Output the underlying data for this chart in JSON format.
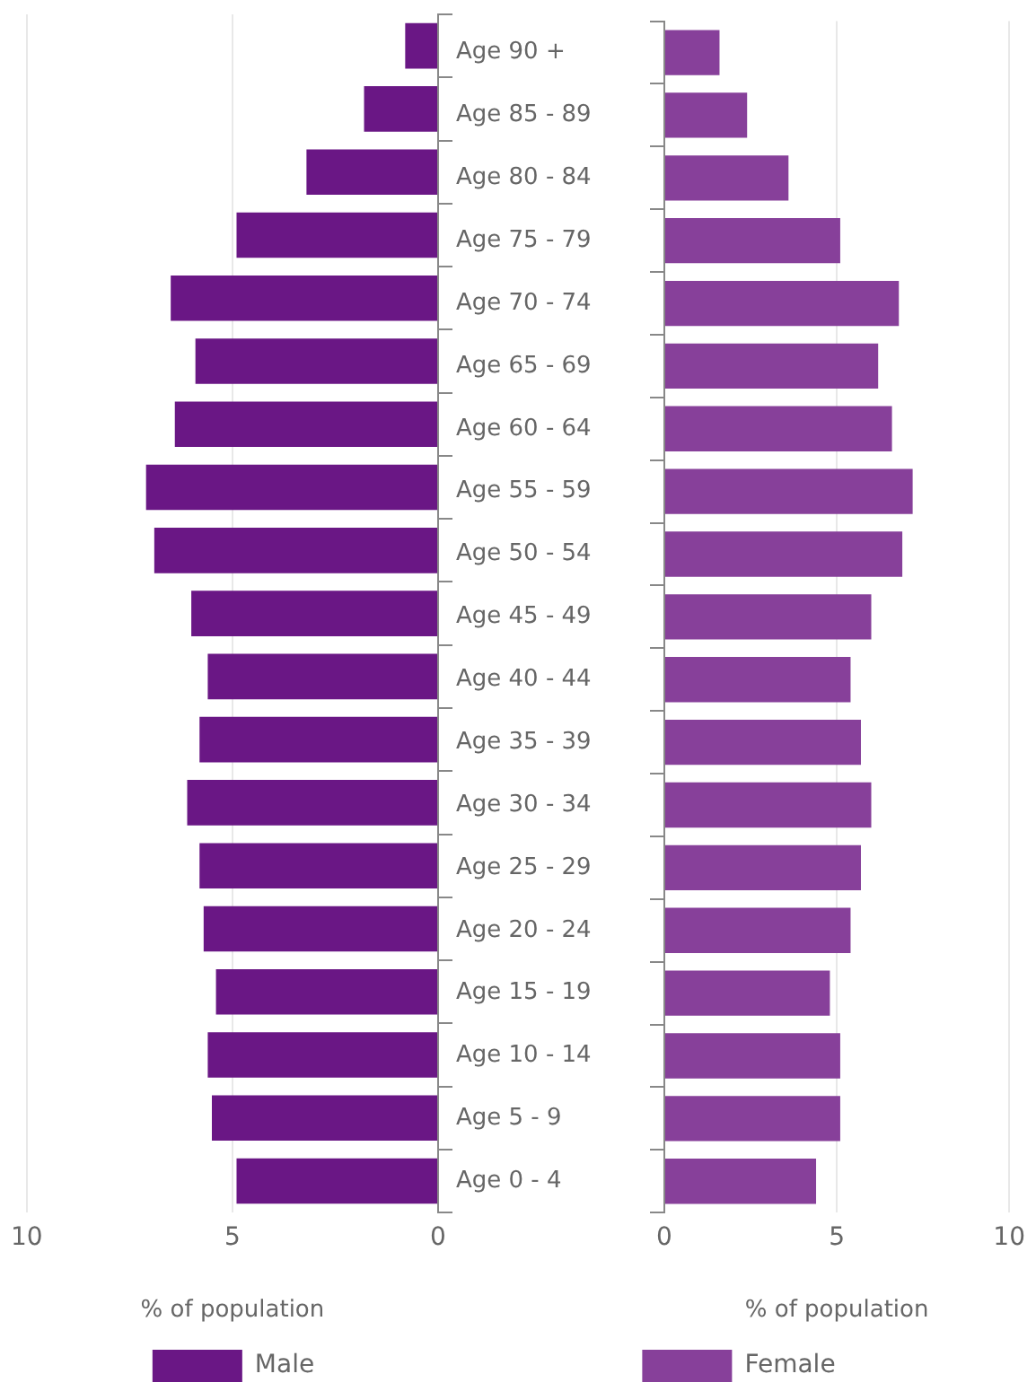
{
  "chart_data": [
    {
      "type": "bar",
      "orientation": "horizontal",
      "xlabel": "% of population",
      "series": [
        {
          "name": "Male",
          "color": "#6a1785",
          "values": [
            0.8,
            1.8,
            3.2,
            4.9,
            6.5,
            5.9,
            6.4,
            7.1,
            6.9,
            6.0,
            5.6,
            5.8,
            6.1,
            5.8,
            5.7,
            5.4,
            5.6,
            5.5,
            4.9
          ]
        }
      ],
      "xlim": [
        10,
        0
      ],
      "xticks": [
        10,
        5,
        0
      ],
      "grid": "x",
      "legend": "bottom",
      "tick_labels": "x"
    },
    {
      "type": "bar",
      "orientation": "horizontal",
      "xlabel": "% of population",
      "categories": [
        "Age 90 +",
        "Age 85 - 89",
        "Age 80 - 84",
        "Age 75 - 79",
        "Age 70 - 74",
        "Age 65 - 69",
        "Age 60 - 64",
        "Age 55 - 59",
        "Age 50 - 54",
        "Age 45 - 49",
        "Age 40 - 44",
        "Age 35 - 39",
        "Age 30 - 34",
        "Age 25 - 29",
        "Age 20 - 24",
        "Age 15 - 19",
        "Age 10 - 14",
        "Age 5 - 9",
        "Age 0 - 4"
      ],
      "series": [
        {
          "name": "Female",
          "color": "#87409a",
          "values": [
            1.6,
            2.4,
            3.6,
            5.1,
            6.8,
            6.2,
            6.6,
            7.2,
            6.9,
            6.0,
            5.4,
            5.7,
            6.0,
            5.7,
            5.4,
            4.8,
            5.1,
            5.1,
            4.4
          ]
        }
      ],
      "xlim": [
        0,
        10
      ],
      "xticks": [
        0,
        5,
        10
      ],
      "grid": "x",
      "legend": "bottom"
    }
  ]
}
